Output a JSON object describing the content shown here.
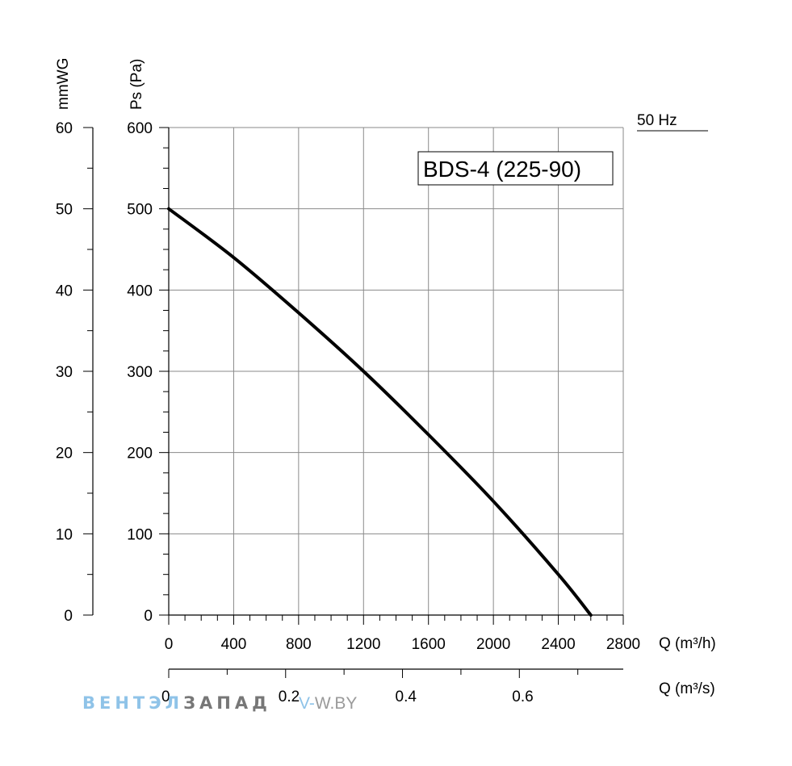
{
  "chart_data": {
    "type": "line",
    "title": "BDS-4 (225-90)",
    "frequency_label": "50 Hz",
    "ylabel": "Ps (Pa)",
    "ylabel_secondary": "mmWG",
    "xlabel": "Q (m³/h)",
    "xlabel_secondary": "Q (m³/s)",
    "xlim": [
      0,
      2800
    ],
    "ylim": [
      0,
      600
    ],
    "ylim_secondary": [
      0,
      60
    ],
    "xlim_secondary": [
      0,
      0.7778
    ],
    "x_ticks": [
      "0",
      "400",
      "800",
      "1200",
      "1600",
      "2000",
      "2400",
      "2800"
    ],
    "y_ticks": [
      "0",
      "100",
      "200",
      "300",
      "400",
      "500",
      "600"
    ],
    "y_ticks_secondary": [
      "0",
      "10",
      "20",
      "30",
      "40",
      "50",
      "60"
    ],
    "x_ticks_secondary": [
      "0",
      "0.2",
      "0.4",
      "0.6"
    ],
    "grid": true,
    "series": [
      {
        "x": [
          0,
          400,
          800,
          1200,
          1600,
          2000,
          2400,
          2600
        ],
        "y": [
          500,
          440,
          372,
          300,
          222,
          140,
          50,
          0
        ]
      }
    ]
  },
  "watermark": {
    "brand_part1": "ВЕНТЭЛ",
    "brand_part2": "ЗАПАД",
    "site_part1": "V-",
    "site_part2": "W.BY"
  }
}
